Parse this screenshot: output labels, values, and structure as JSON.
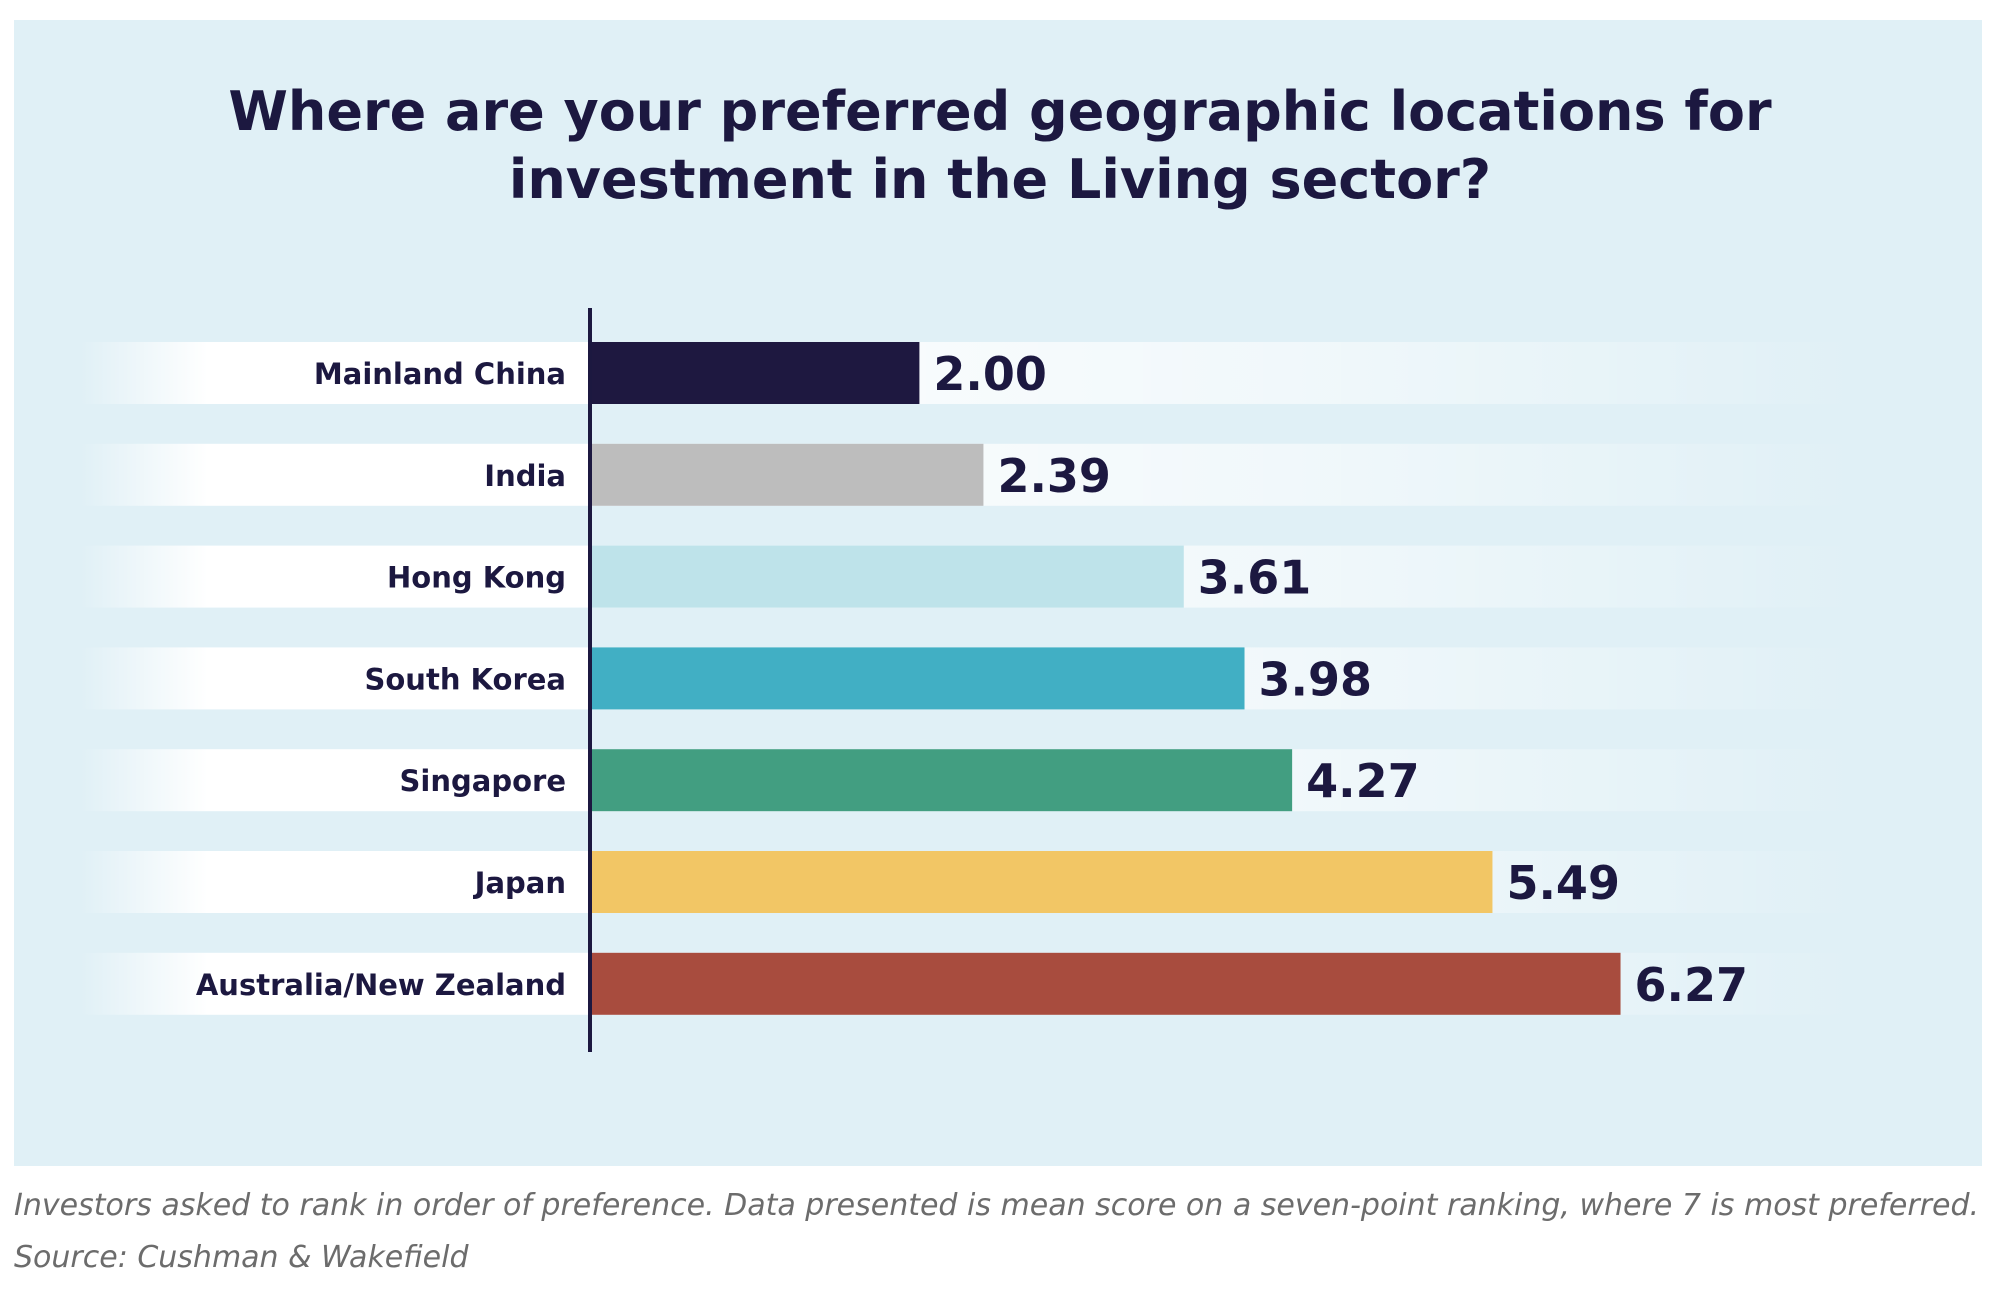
{
  "title_lines": [
    "Where are your preferred geographic locations for",
    "investment in the Living sector?"
  ],
  "note": "Investors asked to rank in order of preference. Data presented is mean score on a seven-point ranking, where 7 is most preferred.",
  "source": "Source: Cushman & Wakefield",
  "colors": {
    "panel_background": "#e0f0f6",
    "text_dark": "#1c1840",
    "axis_line": "#1c1840"
  },
  "chart_data": {
    "type": "bar",
    "orientation": "horizontal",
    "title": "Where are your preferred geographic locations for investment in the Living sector?",
    "categories": [
      "Mainland China",
      "India",
      "Hong Kong",
      "South Korea",
      "Singapore",
      "Japan",
      "Australia/New Zealand"
    ],
    "values": [
      2.0,
      2.39,
      3.61,
      3.98,
      4.27,
      5.49,
      6.27
    ],
    "value_labels": [
      "2.00",
      "2.39",
      "3.61",
      "3.98",
      "4.27",
      "5.49",
      "6.27"
    ],
    "bar_colors": [
      "#1e1840",
      "#bdbdbd",
      "#bee3ea",
      "#41afc4",
      "#429e81",
      "#f2c665",
      "#a84c3e"
    ],
    "xlim": [
      0,
      7
    ],
    "xlabel": "",
    "ylabel": "",
    "grid": false,
    "legend": "none"
  }
}
